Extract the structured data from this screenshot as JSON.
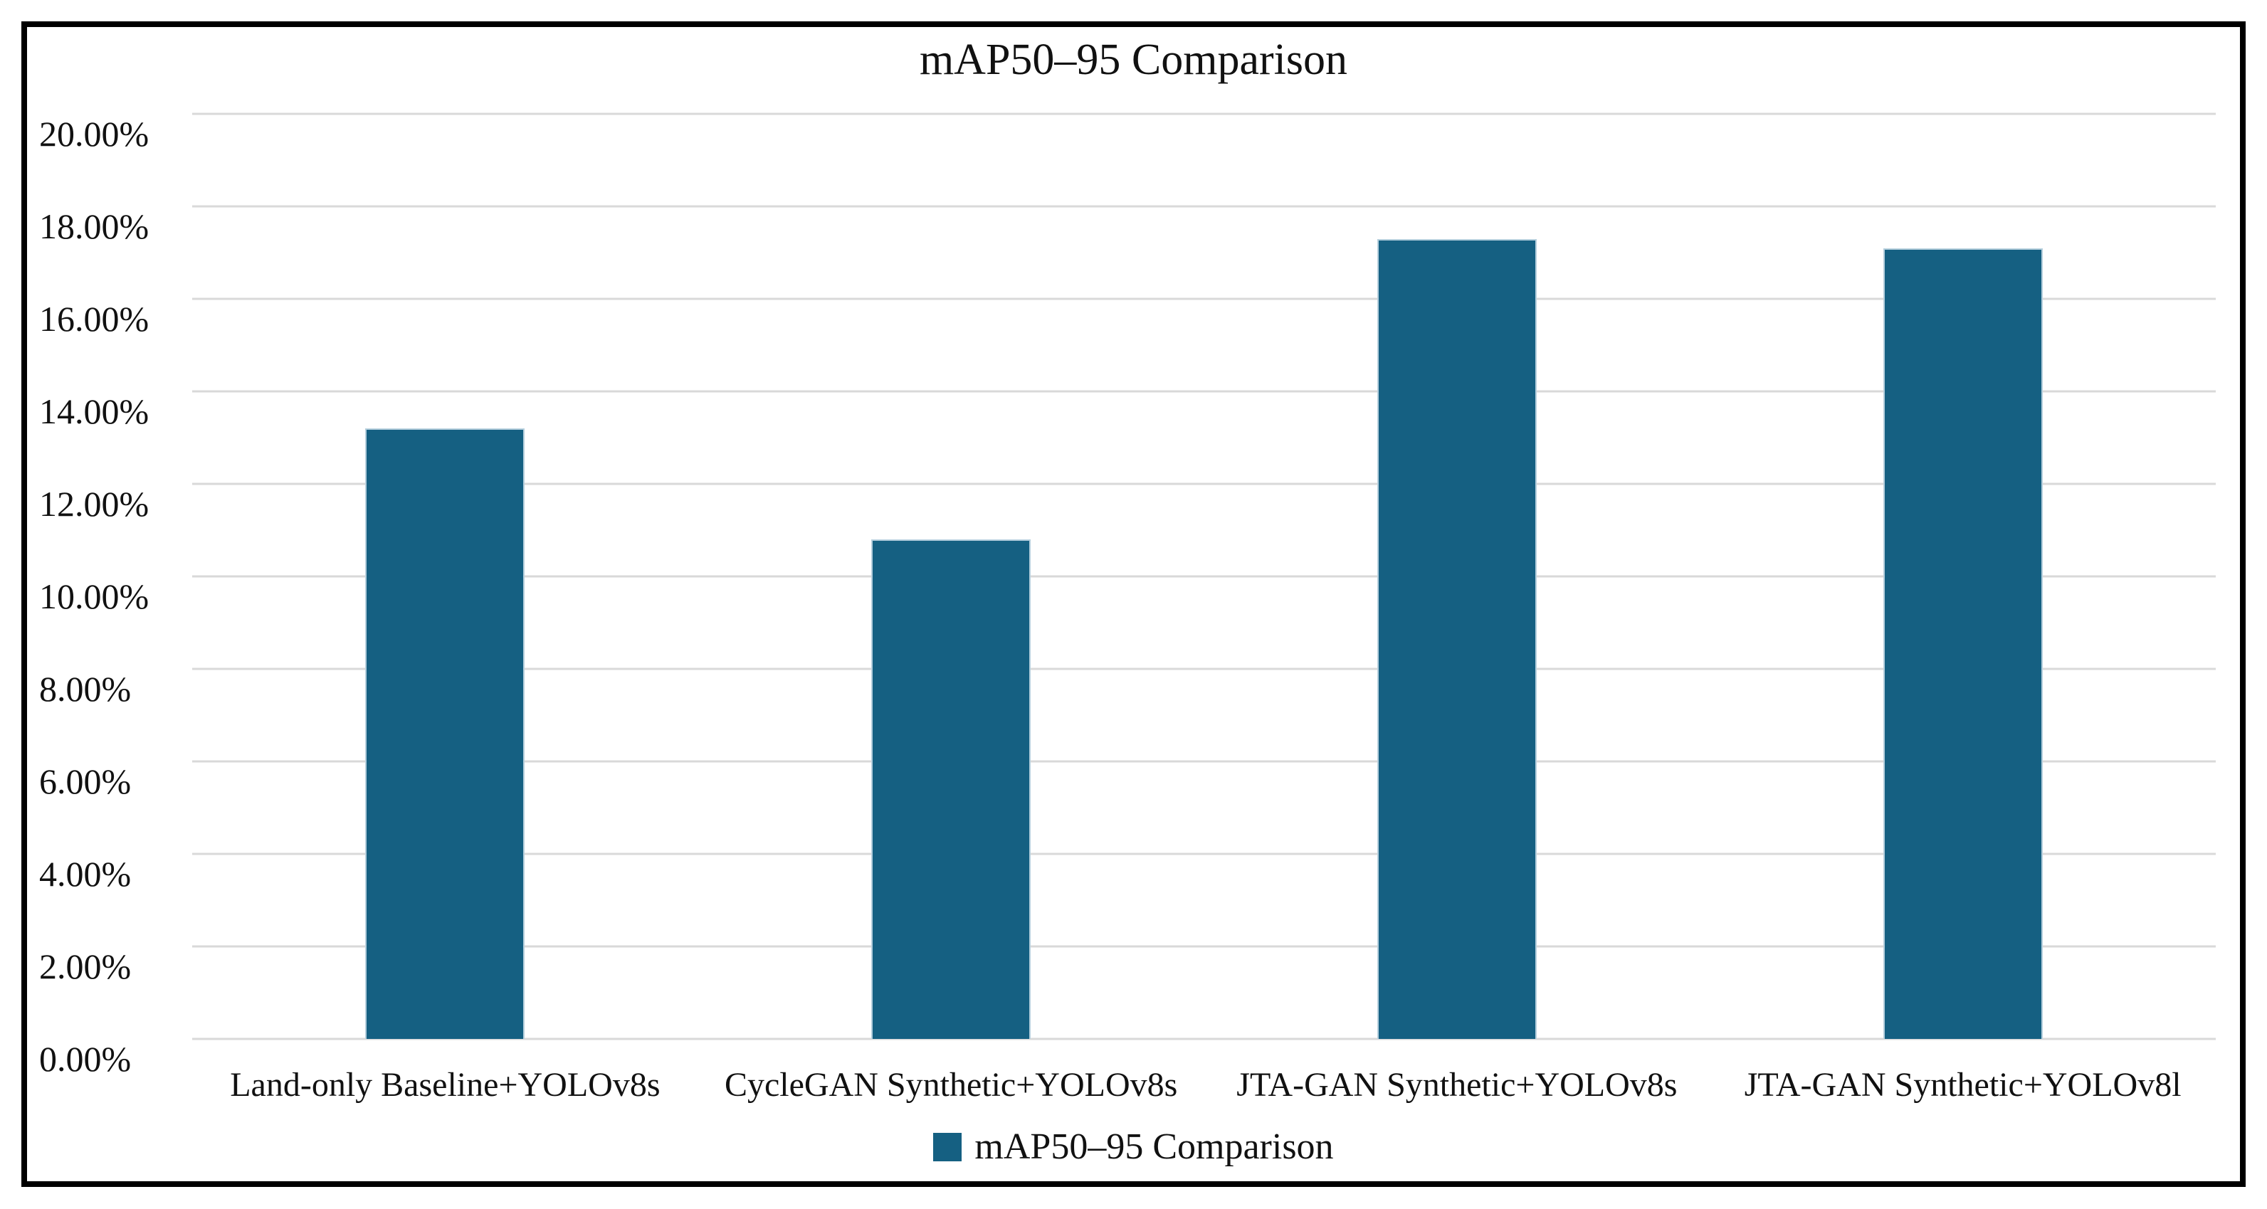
{
  "chart_data": {
    "type": "bar",
    "title": "mAP50–95 Comparison",
    "categories": [
      "Land-only Baseline+YOLOv8s",
      "CycleGAN Synthetic+YOLOv8s",
      "JTA-GAN Synthetic+YOLOv8s",
      "JTA-GAN Synthetic+YOLOv8l"
    ],
    "values": [
      13.2,
      10.8,
      17.3,
      17.1
    ],
    "value_unit": "%",
    "ylim": [
      0,
      20
    ],
    "ytick_step": 2,
    "yticks": [
      {
        "value": 0,
        "label": "0.00%"
      },
      {
        "value": 2,
        "label": "2.00%"
      },
      {
        "value": 4,
        "label": "4.00%"
      },
      {
        "value": 6,
        "label": "6.00%"
      },
      {
        "value": 8,
        "label": "8.00%"
      },
      {
        "value": 10,
        "label": "10.00%"
      },
      {
        "value": 12,
        "label": "12.00%"
      },
      {
        "value": 14,
        "label": "14.00%"
      },
      {
        "value": 16,
        "label": "16.00%"
      },
      {
        "value": 18,
        "label": "18.00%"
      },
      {
        "value": 20,
        "label": "20.00%"
      }
    ],
    "xlabel": "",
    "ylabel": "",
    "grid": true,
    "legend": {
      "position": "bottom",
      "label": "mAP50–95 Comparison"
    },
    "colors": {
      "bar": "#156082",
      "bar_edge": "#b5cfdd",
      "gridline": "#d9d9d9",
      "text": "#111111",
      "frame_border": "#000000",
      "background": "#ffffff"
    }
  }
}
